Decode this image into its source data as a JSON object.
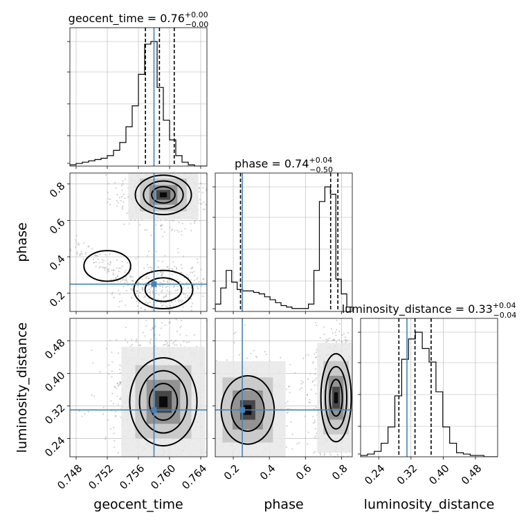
{
  "chart_data": {
    "type": "corner",
    "parameters": [
      "geocent_time",
      "phase",
      "luminosity_distance"
    ],
    "truths": {
      "geocent_time": 0.758,
      "phase": 0.25,
      "luminosity_distance": 0.31
    },
    "titles": [
      {
        "param": "geocent_time",
        "text": "geocent_time = 0.76",
        "sup": "+0.00",
        "sub": "−0.00"
      },
      {
        "param": "phase",
        "text": "phase = 0.74",
        "sup": "+0.04",
        "sub": "−0.50"
      },
      {
        "param": "luminosity_distance",
        "text": "luminosity_distance = 0.33",
        "sup": "+0.04",
        "sub": "−0.04"
      }
    ],
    "axes": {
      "geocent_time": {
        "range": [
          0.7472,
          0.7648
        ],
        "ticks": [
          "0.748",
          "0.752",
          "0.756",
          "0.760",
          "0.764"
        ]
      },
      "phase": {
        "range": [
          0.1,
          0.86
        ],
        "ticks": [
          "0.2",
          "0.4",
          "0.6",
          "0.8"
        ]
      },
      "luminosity_distance": {
        "range": [
          0.195,
          0.535
        ],
        "ticks": [
          "0.24",
          "0.32",
          "0.40",
          "0.48"
        ]
      }
    },
    "hist_1d": {
      "geocent_time": {
        "edges_start": 0.7472,
        "bin_width": 0.0008,
        "counts": [
          1,
          2,
          3,
          4,
          5,
          6,
          8,
          12,
          18,
          30,
          46,
          70,
          93,
          95,
          60,
          35,
          20,
          8,
          3,
          1,
          0,
          0
        ],
        "quantiles": [
          0.7569,
          0.7587,
          0.7606
        ]
      },
      "phase": {
        "edges_start": 0.1,
        "bin_width": 0.0304,
        "counts": [
          5,
          16,
          28,
          20,
          15,
          14,
          14,
          13,
          12,
          10,
          8,
          6,
          4,
          3,
          2,
          2,
          2,
          5,
          28,
          75,
          85,
          80,
          22,
          12,
          3
        ],
        "quantiles": [
          0.24,
          0.74,
          0.78
        ]
      },
      "luminosity_distance": {
        "edges_start": 0.195,
        "bin_width": 0.017,
        "counts": [
          1,
          2,
          4,
          10,
          22,
          45,
          72,
          87,
          92,
          80,
          70,
          48,
          22,
          10,
          3,
          2,
          1,
          1,
          0,
          0
        ],
        "quantiles": [
          0.29,
          0.33,
          0.37
        ]
      }
    },
    "modes_2d": {
      "phase_vs_geocent_time": [
        {
          "x": 0.7592,
          "y": 0.74,
          "sx": 0.0015,
          "sy": 0.045,
          "weight": 0.7
        },
        {
          "x": 0.7592,
          "y": 0.22,
          "sx": 0.0018,
          "sy": 0.05,
          "weight": 0.2
        },
        {
          "x": 0.752,
          "y": 0.35,
          "sx": 0.0025,
          "sy": 0.07,
          "weight": 0.1
        }
      ],
      "luminosity_distance_vs_geocent_time": [
        {
          "x": 0.7592,
          "y": 0.33,
          "sx": 0.0018,
          "sy": 0.045,
          "weight": 1.0
        }
      ],
      "luminosity_distance_vs_phase": [
        {
          "x": 0.77,
          "y": 0.34,
          "sx": 0.035,
          "sy": 0.045,
          "weight": 0.7
        },
        {
          "x": 0.28,
          "y": 0.31,
          "sx": 0.07,
          "sy": 0.04,
          "weight": 0.3
        }
      ]
    },
    "grid": true,
    "colors": {
      "truth": "#4682b4",
      "hist": "#000000",
      "points": "#999999",
      "grid": "#b0b0b0"
    }
  }
}
